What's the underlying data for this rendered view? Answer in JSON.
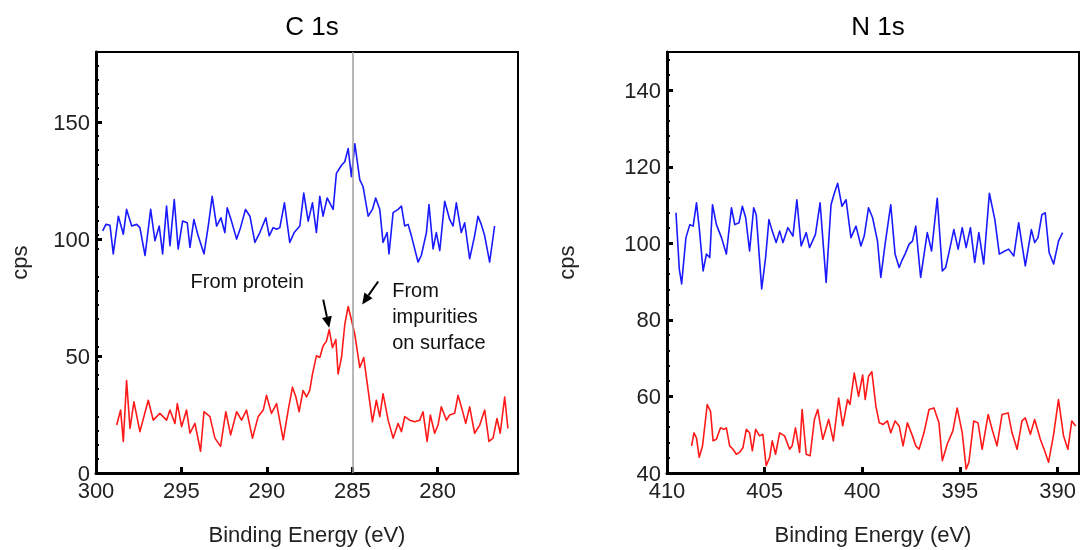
{
  "chart_data": [
    {
      "type": "line",
      "title": "C 1s",
      "xlabel": "Binding Energy (eV)",
      "ylabel": "cps",
      "xlim": [
        300,
        275.3
      ],
      "xticks": [
        300,
        295,
        290,
        285,
        280
      ],
      "ylim": [
        0,
        180
      ],
      "yticks": [
        0,
        50,
        100,
        150
      ],
      "ref_lines": [
        {
          "axis": "x",
          "value": 285,
          "color": "#a0a0a0"
        }
      ],
      "annotations": [
        {
          "text": "From protein",
          "x": 286.35,
          "y": 61.3
        },
        {
          "text": "From impurities on surface",
          "x": 285.24,
          "y": 71.2
        }
      ],
      "series": [
        {
          "color": "#1a1aff",
          "x": [
            299.61,
            299.42,
            299.18,
            298.99,
            298.69,
            298.4,
            298.21,
            297.91,
            297.62,
            297.43,
            297.13,
            296.8,
            296.55,
            296.3,
            296.1,
            295.87,
            295.67,
            295.42,
            295.19,
            294.93,
            294.66,
            294.5,
            294.27,
            294.02,
            293.68,
            293.43,
            293.2,
            292.94,
            292.69,
            292.46,
            292.32,
            292.07,
            291.77,
            291.54,
            291.25,
            290.99,
            290.7,
            290.41,
            290.06,
            289.86,
            289.63,
            289.43,
            289.24,
            288.97,
            288.66,
            288.4,
            288.07,
            287.84,
            287.58,
            287.33,
            287.1,
            286.9,
            286.71,
            286.47,
            286.12,
            285.93,
            285.63,
            285.44,
            285.24,
            285.05,
            284.85,
            284.56,
            284.37,
            284.07,
            283.82,
            283.63,
            283.39,
            283.2,
            282.96,
            282.85,
            282.61,
            282.32,
            282.12,
            281.93,
            281.73,
            281.54,
            281.15,
            280.96,
            280.66,
            280.51,
            280.27,
            280.08,
            279.88,
            279.59,
            279.3,
            279.1,
            278.91,
            278.62,
            278.42,
            278.13,
            277.84,
            277.64,
            277.45,
            277.25,
            276.96,
            276.67
          ],
          "values": [
            103.5,
            106.3,
            105.9,
            93.7,
            109.8,
            102.1,
            112.7,
            105.6,
            106.3,
            104.9,
            93,
            112.7,
            99.3,
            105.6,
            93.7,
            114.1,
            97.2,
            116.9,
            95.8,
            107.7,
            107,
            96.5,
            108.4,
            101.4,
            93.7,
            105.6,
            118.3,
            105.6,
            109.1,
            102.8,
            113.4,
            107.7,
            100,
            104.9,
            112.7,
            109.8,
            98.6,
            102.8,
            109.1,
            101.4,
            104.9,
            104.2,
            104.9,
            115.5,
            98.6,
            102.8,
            105.6,
            119.7,
            107.7,
            115.5,
            102.8,
            118.3,
            109.8,
            117.6,
            112.7,
            128.1,
            131.6,
            133.1,
            138.7,
            126.7,
            140.8,
            125.3,
            122.5,
            109.8,
            112.7,
            117.6,
            112.7,
            98.6,
            102.8,
            93.7,
            111.3,
            112.7,
            114.1,
            105.6,
            106.3,
            101.4,
            90.2,
            93,
            102.8,
            114.8,
            95.8,
            102.8,
            95.1,
            116.2,
            108.4,
            105.6,
            115.5,
            102.8,
            107,
            91.6,
            101.4,
            109.8,
            106.3,
            101.4,
            90.2,
            105.6
          ]
        },
        {
          "color": "#ff1a1a",
          "x": [
            298.79,
            298.56,
            298.4,
            298.21,
            298.01,
            297.78,
            297.43,
            296.94,
            296.65,
            296.26,
            295.87,
            295.67,
            295.38,
            295.24,
            294.99,
            294.7,
            294.5,
            294.21,
            293.88,
            293.68,
            293.33,
            293.04,
            292.71,
            292.4,
            292.12,
            291.77,
            291.48,
            291.19,
            290.84,
            290.51,
            290.21,
            290.02,
            289.73,
            289.43,
            289.04,
            288.75,
            288.5,
            288.3,
            288.11,
            287.88,
            287.68,
            287.49,
            287.33,
            287.1,
            286.9,
            286.71,
            286.51,
            286.35,
            286.16,
            285.96,
            285.83,
            285.63,
            285.44,
            285.24,
            285.05,
            284.85,
            284.56,
            284.33,
            284.07,
            283.82,
            283.59,
            283.39,
            283.2,
            282.9,
            282.61,
            282.32,
            282.12,
            281.93,
            281.64,
            281.35,
            281.05,
            280.86,
            280.62,
            280.43,
            280.18,
            279.98,
            279.79,
            279.49,
            279.3,
            279.01,
            278.81,
            278.56,
            278.36,
            278.13,
            277.84,
            277.54,
            277.25,
            277,
            276.76,
            276.53,
            276.34,
            276.08,
            275.89
          ],
          "values": [
            20.5,
            26.9,
            13.5,
            39.5,
            19.1,
            30.4,
            17.7,
            31.1,
            22.6,
            25.5,
            22.6,
            26.9,
            21.2,
            29.7,
            19.8,
            26.9,
            17,
            21.2,
            9.3,
            26.2,
            24.1,
            14.9,
            11.4,
            26.2,
            16.3,
            26.2,
            22.6,
            26.9,
            14.9,
            24.1,
            26.9,
            33.2,
            25.5,
            29.7,
            14.2,
            26.9,
            36.7,
            32.5,
            26.2,
            35.3,
            32.5,
            35.3,
            42.3,
            50.1,
            49.4,
            54.3,
            56.4,
            61.3,
            53.6,
            57.1,
            42.3,
            49.4,
            63.4,
            71.2,
            65.5,
            59.2,
            45.1,
            49.4,
            35.3,
            21.9,
            31.1,
            24.1,
            33.9,
            22.6,
            14.9,
            21.2,
            17.7,
            24.1,
            22.6,
            21.9,
            22.6,
            26.2,
            13.5,
            24.8,
            17,
            20.5,
            28.3,
            22.6,
            24.8,
            25.5,
            33.2,
            26.9,
            21.2,
            28.3,
            17,
            20.5,
            26.9,
            13.5,
            14.9,
            23.3,
            17,
            32.5,
            19.1
          ]
        }
      ]
    },
    {
      "type": "line",
      "title": "N 1s",
      "xlabel": "Binding Energy (eV)",
      "ylabel": "cps",
      "xlim": [
        410,
        388.9
      ],
      "xticks": [
        410,
        405,
        400,
        395,
        390
      ],
      "ylim": [
        40,
        150
      ],
      "yticks": [
        40,
        60,
        80,
        100,
        120,
        140
      ],
      "series": [
        {
          "color": "#1a1aff",
          "x": [
            409.54,
            409.37,
            409.25,
            409.03,
            408.83,
            408.66,
            408.49,
            408.35,
            408.15,
            407.98,
            407.81,
            407.67,
            407.47,
            407.21,
            406.96,
            406.7,
            406.53,
            406.31,
            406.14,
            405.97,
            405.77,
            405.56,
            405.43,
            405.15,
            404.95,
            404.78,
            404.61,
            404.41,
            404.23,
            404.06,
            403.81,
            403.55,
            403.35,
            403.13,
            402.87,
            402.7,
            402.4,
            402.16,
            401.85,
            401.6,
            401.43,
            401.26,
            401.04,
            400.83,
            400.58,
            400.32,
            400.07,
            399.9,
            399.68,
            399.47,
            399.22,
            399.05,
            398.83,
            398.54,
            398.32,
            398.11,
            397.98,
            397.81,
            397.6,
            397.43,
            397.26,
            397.01,
            396.67,
            396.45,
            396.16,
            395.9,
            395.73,
            395.56,
            395.31,
            395.09,
            394.88,
            394.68,
            394.46,
            394.24,
            394.03,
            393.78,
            393.49,
            393.21,
            392.98,
            392.7,
            392.5,
            392.24,
            391.99,
            391.65,
            391.34,
            391.17,
            391,
            390.8,
            390.63,
            390.43,
            390.2,
            389.95,
            389.74
          ],
          "values": [
            108,
            93.3,
            89.4,
            101.5,
            104.9,
            104.5,
            110.6,
            104.1,
            92.8,
            97.2,
            96.3,
            110.1,
            104.9,
            101.5,
            97.2,
            109.3,
            104.9,
            105.4,
            109.7,
            106.7,
            98,
            109.3,
            107.5,
            88.1,
            96.3,
            106.2,
            103.2,
            100.2,
            103.2,
            100.2,
            104.1,
            101.9,
            111.4,
            99.3,
            102.8,
            98.9,
            102.3,
            110.6,
            89.8,
            110.1,
            113.1,
            115.7,
            109.7,
            111.4,
            101.5,
            104.5,
            99.3,
            101.9,
            109.3,
            106.7,
            100.6,
            91.1,
            99.8,
            110.1,
            97.2,
            93.7,
            95.4,
            97.2,
            99.8,
            100.6,
            104.5,
            91.1,
            102.8,
            98,
            111.8,
            92.8,
            93.7,
            97.6,
            103.6,
            98.5,
            104.1,
            98.9,
            104.1,
            95,
            102.8,
            94.6,
            113.1,
            106.2,
            97.2,
            98,
            98.5,
            96.7,
            105.4,
            94.1,
            103.6,
            100.2,
            101.5,
            107.5,
            108,
            97.6,
            94.6,
            100.6,
            102.8
          ]
        },
        {
          "color": "#ff1a1a",
          "x": [
            408.74,
            408.62,
            408.49,
            408.35,
            408.18,
            407.94,
            407.77,
            407.64,
            407.47,
            407.26,
            407.09,
            406.96,
            406.79,
            406.62,
            406.45,
            406.28,
            406.11,
            405.94,
            405.77,
            405.63,
            405.46,
            405.26,
            405.09,
            404.92,
            404.74,
            404.61,
            404.44,
            404.23,
            403.98,
            403.72,
            403.59,
            403.42,
            403.21,
            403.08,
            402.87,
            402.67,
            402.45,
            402.28,
            402.02,
            401.72,
            401.48,
            401.21,
            401,
            400.75,
            400.63,
            400.41,
            400.19,
            399.98,
            399.85,
            399.68,
            399.51,
            399.3,
            399.13,
            398.93,
            398.71,
            398.54,
            398.32,
            398.11,
            397.91,
            397.69,
            397.43,
            397.26,
            397.09,
            396.84,
            396.58,
            396.33,
            396.07,
            395.9,
            395.65,
            395.36,
            395.14,
            394.88,
            394.68,
            394.54,
            394.29,
            394.07,
            393.86,
            393.55,
            393.35,
            393.1,
            392.84,
            392.53,
            392.33,
            392.07,
            391.82,
            391.65,
            391.39,
            391.17,
            390.88,
            390.66,
            390.46,
            390.2,
            389.95,
            389.69,
            389.47,
            389.27,
            389.07
          ],
          "values": [
            47.1,
            50.5,
            49.2,
            44.1,
            47.1,
            57.9,
            56.1,
            48.4,
            48.8,
            51.8,
            51.4,
            51.8,
            47.1,
            46.2,
            44.9,
            45.4,
            46.6,
            51.4,
            50.5,
            45.8,
            51.4,
            49.7,
            50.1,
            41.9,
            44.1,
            48.4,
            44.9,
            50.5,
            49.7,
            46.2,
            47.1,
            51.8,
            45.4,
            56.6,
            44.9,
            44.5,
            54,
            56.6,
            48.8,
            54,
            48.4,
            59.6,
            52.3,
            59.2,
            57.9,
            66.1,
            60,
            65.6,
            59.2,
            65.2,
            66.5,
            57.4,
            53.1,
            52.7,
            53.6,
            50.5,
            53.6,
            52.3,
            47.1,
            53.1,
            49.7,
            47.1,
            46.2,
            50.5,
            56.6,
            57,
            53.1,
            43.2,
            47.5,
            51,
            57,
            50.5,
            41,
            42.8,
            53.6,
            53.1,
            46.2,
            55.3,
            51.4,
            47.1,
            55.3,
            55.7,
            50.5,
            46.2,
            53.6,
            54.4,
            50.1,
            54,
            48.8,
            45.8,
            42.8,
            50.1,
            59.2,
            49.7,
            46.2,
            53.6,
            52.3
          ]
        }
      ]
    }
  ]
}
